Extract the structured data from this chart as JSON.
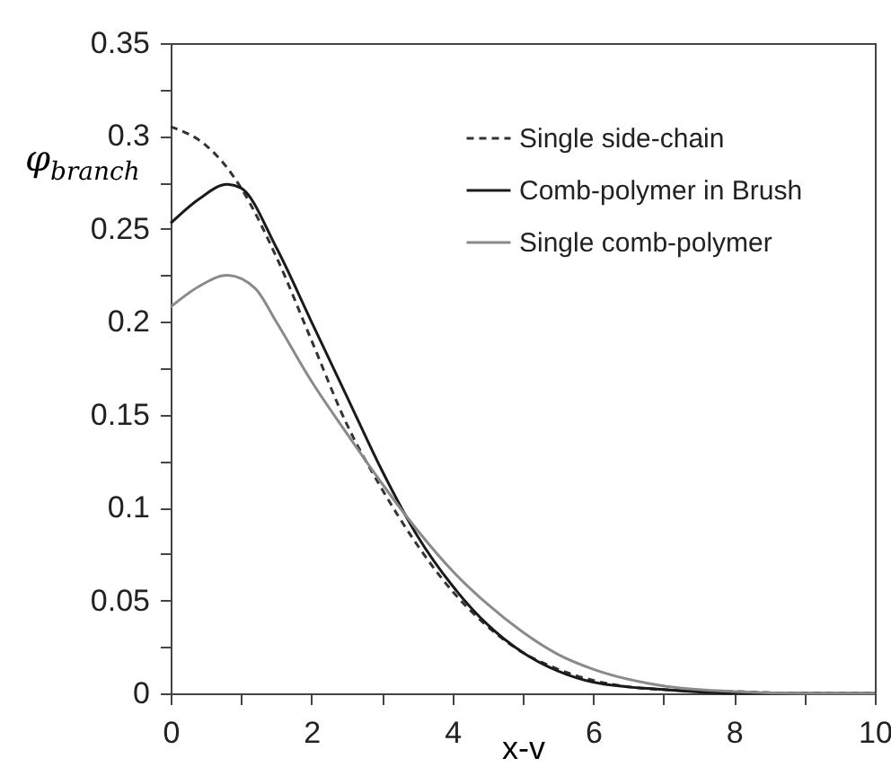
{
  "chart_data": {
    "type": "line",
    "xlabel": "x-v",
    "ylabel": "φ$_{branch}$",
    "xlim": [
      0,
      10
    ],
    "ylim": [
      0,
      0.35
    ],
    "xticks": [
      0,
      {
        "value": 1,
        "label": null
      },
      2,
      {
        "value": 3,
        "label": null
      },
      4,
      {
        "value": 5,
        "label": null
      },
      6,
      {
        "value": 7,
        "label": null
      },
      8,
      {
        "value": 9,
        "label": null
      },
      10
    ],
    "yticks": [
      0,
      {
        "value": 0.025,
        "label": null
      },
      0.05,
      {
        "value": 0.075,
        "label": null
      },
      0.1,
      {
        "value": 0.125,
        "label": null
      },
      0.15,
      {
        "value": 0.175,
        "label": null
      },
      0.2,
      {
        "value": 0.225,
        "label": null
      },
      0.25,
      {
        "value": 0.275,
        "label": null
      },
      0.3,
      {
        "value": 0.325,
        "label": null
      },
      0.35
    ],
    "grid": false,
    "legend": "top right",
    "marker": "none",
    "series": [
      {
        "name": "Single side-chain",
        "color": "#333333",
        "line_style": "dashed",
        "x": [
          0,
          0.5,
          0.8,
          1,
          1.5,
          2,
          2.5,
          3,
          3.5,
          4,
          4.5,
          5,
          5.5,
          6,
          7,
          8,
          9,
          10
        ],
        "values": [
          0.305,
          0.295,
          0.283,
          0.272,
          0.235,
          0.19,
          0.145,
          0.11,
          0.08,
          0.055,
          0.036,
          0.022,
          0.013,
          0.007,
          0.002,
          0.001,
          0,
          0
        ]
      },
      {
        "name": "Comb-polymer in Brush",
        "color": "#1a1a1a",
        "line_style": "solid",
        "x": [
          0,
          0.4,
          0.8,
          1,
          1.5,
          2,
          2.5,
          3,
          3.5,
          4,
          4.5,
          5,
          5.5,
          6,
          7,
          8,
          9,
          10
        ],
        "values": [
          0.253,
          0.266,
          0.274,
          0.272,
          0.24,
          0.2,
          0.16,
          0.12,
          0.085,
          0.058,
          0.037,
          0.022,
          0.012,
          0.006,
          0.002,
          0,
          0,
          0
        ]
      },
      {
        "name": "Single comb-polymer",
        "color": "#8a8a8a",
        "line_style": "solid",
        "x": [
          0,
          0.4,
          0.8,
          1.2,
          1.5,
          2,
          2.5,
          3,
          3.5,
          4,
          4.5,
          5,
          5.5,
          6,
          7,
          8,
          9,
          10
        ],
        "values": [
          0.208,
          0.219,
          0.225,
          0.218,
          0.2,
          0.168,
          0.14,
          0.113,
          0.088,
          0.066,
          0.048,
          0.033,
          0.021,
          0.013,
          0.004,
          0.001,
          0,
          0
        ]
      }
    ]
  }
}
